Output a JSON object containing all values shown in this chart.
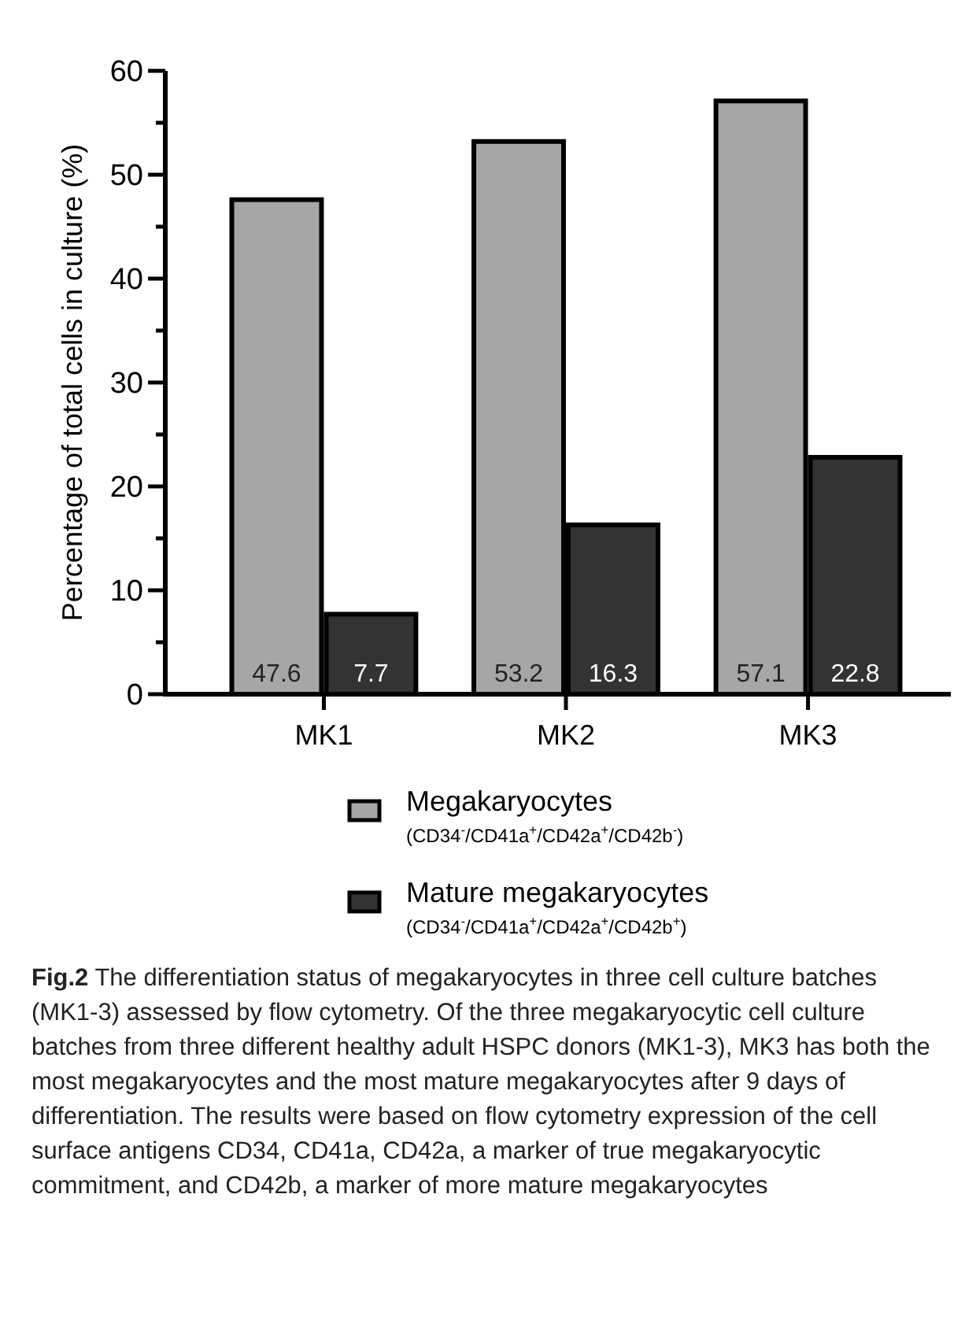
{
  "chart_data": {
    "type": "bar",
    "ylabel": "Percentage of total cells in culture (%)",
    "categories": [
      "MK1",
      "MK2",
      "MK3"
    ],
    "series": [
      {
        "name": "Megakaryocytes",
        "color": "#a6a6a6",
        "values": [
          47.6,
          53.2,
          57.1
        ]
      },
      {
        "name": "Mature megakaryocytes",
        "color": "#333333",
        "values": [
          7.7,
          16.3,
          22.8
        ]
      }
    ],
    "ylim": [
      0,
      60
    ],
    "yticks": [
      0,
      {
        "value": 5,
        "label": null
      },
      10,
      {
        "value": 15,
        "label": null
      },
      20,
      {
        "value": 25,
        "label": null
      },
      30,
      {
        "value": 35,
        "label": null
      },
      40,
      {
        "value": 45,
        "label": null
      },
      50,
      {
        "value": 55,
        "label": null
      },
      60
    ],
    "data_labels": true,
    "legend": "bottom",
    "grid": false,
    "annotations": [
      "(CD34$^{-}$/CD41a$^{+}$/CD42a$^{+}$/CD42b$^{-}$)",
      "(CD34$^{-}$/CD41a$^{+}$/CD42a$^{+}$/CD42b$^{+}$)",
      "Fig.2",
      "The differentiation status of megakaryocytes in three cell culture batches (MK1-3) assessed by flow cytometry. Of the three megakaryocytic cell culture batches from three different healthy adult HSPC donors (MK1-3), MK3 has both the most megakaryocytes and the most mature megakaryocytes after 9 days of differentiation. The results were based on flow cytometry expression of the cell surface antigens CD34, CD41a, CD42a, a marker of true megakaryocytic commitment, and CD42b, a marker of more mature megakaryocytes"
    ]
  }
}
